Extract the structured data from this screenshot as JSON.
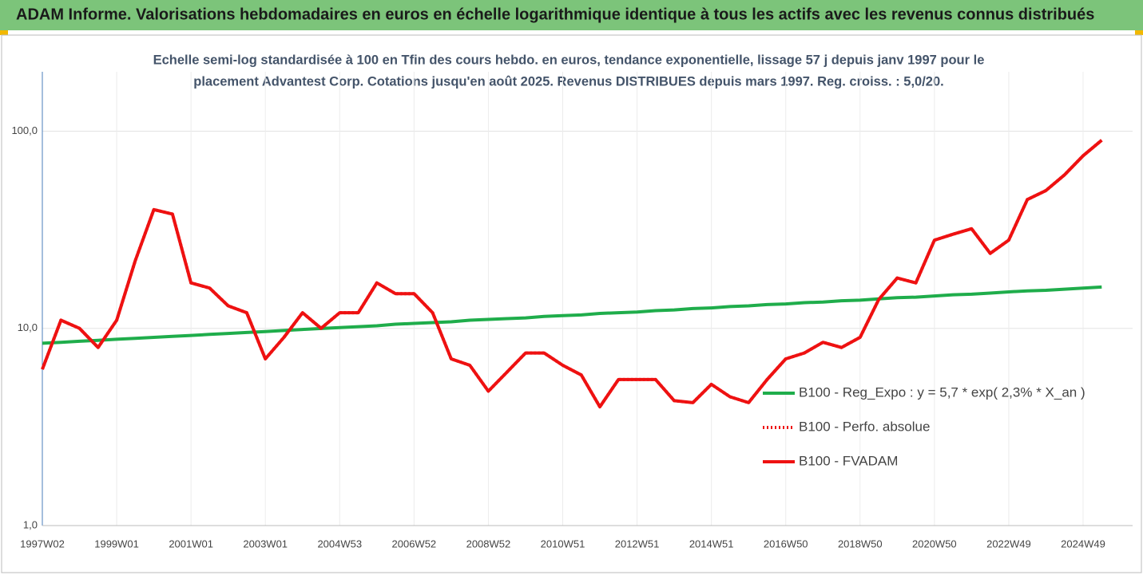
{
  "chart_data": {
    "type": "line",
    "title": "ADAM Informe. Valorisations hebdomadaires en euros en échelle logarithmique identique à tous les actifs avec les revenus connus distribués",
    "subtitle": [
      "Echelle semi-log standardisée à 100 en Tfin des cours hebdo. en euros, tendance exponentielle, lissage 57 j depuis janv 1997 pour le",
      "placement Advantest Corp. Cotations jusqu'en août 2025. Revenus DISTRIBUES depuis mars 1997. Reg. croiss. : 5,0/20."
    ],
    "categories": [
      "1997W02",
      null,
      null,
      null,
      "1999W01",
      null,
      null,
      null,
      "2001W01",
      null,
      null,
      null,
      "2003W01",
      null,
      null,
      null,
      "2004W53",
      null,
      null,
      null,
      "2006W52",
      null,
      null,
      null,
      "2008W52",
      null,
      null,
      null,
      "2010W51",
      null,
      null,
      null,
      "2012W51",
      null,
      null,
      null,
      "2014W51",
      null,
      null,
      null,
      "2016W50",
      null,
      null,
      null,
      "2018W50",
      null,
      null,
      null,
      "2020W50",
      null,
      null,
      null,
      "2022W49",
      null,
      null,
      null,
      "2024W49",
      null
    ],
    "series": [
      {
        "name": "B100 - Reg_Expo : y = 5,7 * exp( 2,3% *  X_an )",
        "color": "#1fad4b",
        "style": "solid",
        "values": [
          8.4,
          8.5,
          8.6,
          8.7,
          8.8,
          8.9,
          9.0,
          9.1,
          9.21,
          9.32,
          9.42,
          9.53,
          9.64,
          9.75,
          9.87,
          9.98,
          10.1,
          10.2,
          10.3,
          10.5,
          10.6,
          10.7,
          10.8,
          11.0,
          11.1,
          11.2,
          11.3,
          11.5,
          11.6,
          11.7,
          11.9,
          12.0,
          12.1,
          12.3,
          12.4,
          12.6,
          12.7,
          12.9,
          13.0,
          13.2,
          13.3,
          13.5,
          13.6,
          13.8,
          13.9,
          14.1,
          14.3,
          14.4,
          14.6,
          14.8,
          14.9,
          15.1,
          15.3,
          15.5,
          15.6,
          15.8,
          16.0,
          16.2
        ]
      },
      {
        "name": "B100 - Perfo. absolue",
        "color": "#ee1111",
        "style": "dotted",
        "values": [
          6.2,
          11,
          10,
          8,
          11,
          22,
          40,
          38,
          17,
          16,
          13,
          12,
          7,
          9,
          12,
          10,
          12,
          12,
          17,
          15,
          15,
          12,
          7,
          6.5,
          4.8,
          6,
          7.5,
          7.5,
          6.5,
          5.8,
          4,
          5.5,
          5.5,
          5.5,
          4.3,
          4.2,
          5.2,
          4.5,
          4.2,
          5.5,
          7,
          7.5,
          8.5,
          8,
          9,
          14,
          18,
          17,
          28,
          30,
          32,
          24,
          28,
          45,
          50,
          60,
          75,
          90
        ]
      },
      {
        "name": "B100 - FVADAM",
        "color": "#ee1111",
        "style": "solid",
        "values": [
          6.2,
          11,
          10,
          8,
          11,
          22,
          40,
          38,
          17,
          16,
          13,
          12,
          7,
          9,
          12,
          10,
          12,
          12,
          17,
          15,
          15,
          12,
          7,
          6.5,
          4.8,
          6,
          7.5,
          7.5,
          6.5,
          5.8,
          4,
          5.5,
          5.5,
          5.5,
          4.3,
          4.2,
          5.2,
          4.5,
          4.2,
          5.5,
          7,
          7.5,
          8.5,
          8,
          9,
          14,
          18,
          17,
          28,
          30,
          32,
          24,
          28,
          45,
          50,
          60,
          75,
          90
        ]
      }
    ],
    "log_y": true,
    "ylim": [
      1,
      200
    ],
    "yticks": [
      {
        "value": 1,
        "label": "1,0"
      },
      {
        "value": 10,
        "label": "10,0"
      },
      {
        "value": 100,
        "label": "100,0"
      }
    ],
    "grid": true
  }
}
